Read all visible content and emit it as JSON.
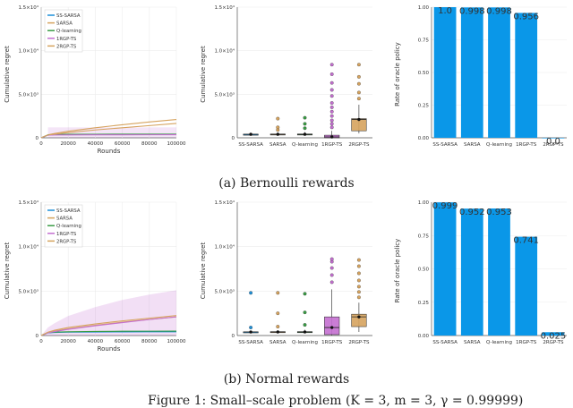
{
  "figure": {
    "caption_a": "(a) Bernoulli rewards",
    "caption_b": "(b) Normal rewards",
    "caption_main": "Figure 1: Small–scale problem (K = 3, m = 3, γ = 0.99999)"
  },
  "colors": {
    "ss_sarsa": "#1e90d8",
    "sarsa": "#d6a35e",
    "q_learning": "#3a9c45",
    "rgp1": "#c46fd0",
    "rgp2": "#d6a35e",
    "bar": "#0a97e8",
    "grid": "#ececec",
    "axis": "#555555"
  },
  "chart_data": [
    {
      "type": "line",
      "panel": "bernoulli-regret-curve",
      "title": "",
      "xlabel": "Rounds",
      "ylabel": "Cumulative regret",
      "xlim": [
        0,
        100000
      ],
      "ylim": [
        0,
        15000
      ],
      "xticks": [
        "0",
        "20000",
        "40000",
        "60000",
        "80000",
        "100000"
      ],
      "yticks": [
        "0",
        "5.0×10³",
        "1.0×10⁴",
        "1.5×10⁴"
      ],
      "legend": [
        "SS-SARSA",
        "SARSA",
        "Q-learning",
        "1RGP-TS",
        "2RGP-TS"
      ],
      "legend_position": "top-left",
      "x": [
        0,
        5000,
        10000,
        20000,
        40000,
        60000,
        80000,
        100000
      ],
      "series": [
        {
          "name": "SS-SARSA",
          "values": [
            0,
            300,
            350,
            380,
            390,
            395,
            398,
            400
          ]
        },
        {
          "name": "SARSA",
          "values": [
            0,
            350,
            500,
            750,
            1150,
            1500,
            1820,
            2100
          ]
        },
        {
          "name": "Q-learning",
          "values": [
            0,
            330,
            380,
            400,
            410,
            415,
            418,
            420
          ]
        },
        {
          "name": "1RGP-TS",
          "values": [
            0,
            300,
            320,
            330,
            340,
            345,
            348,
            350
          ],
          "band": [
            1200,
            1200
          ]
        },
        {
          "name": "2RGP-TS",
          "values": [
            0,
            320,
            420,
            600,
            900,
            1150,
            1400,
            1650
          ]
        }
      ]
    },
    {
      "type": "boxplot",
      "panel": "bernoulli-regret-box",
      "ylabel": "Cumulative regret",
      "ylim": [
        0,
        15000
      ],
      "yticks": [
        "0",
        "5.0×10³",
        "1.0×10⁴",
        "1.5×10⁴"
      ],
      "categories": [
        "SS-SARSA",
        "SARSA",
        "Q-learning",
        "1RGP-TS",
        "2RGP-TS"
      ],
      "boxes": [
        {
          "q1": 380,
          "median": 400,
          "q3": 420,
          "whisker_low": 360,
          "whisker_high": 440,
          "outliers": [],
          "point": 400
        },
        {
          "q1": 360,
          "median": 400,
          "q3": 440,
          "whisker_low": 330,
          "whisker_high": 600,
          "outliers": [
            900,
            1200,
            2200
          ],
          "point": 400
        },
        {
          "q1": 360,
          "median": 400,
          "q3": 440,
          "whisker_low": 330,
          "whisker_high": 650,
          "outliers": [
            1100,
            1600,
            2300
          ],
          "point": 400
        },
        {
          "q1": 0,
          "median": 100,
          "q3": 300,
          "whisker_low": 0,
          "whisker_high": 800,
          "outliers": [
            1200,
            1600,
            2000,
            2500,
            3000,
            3500,
            4000,
            4800,
            5500,
            6300,
            7300,
            8400
          ],
          "point": 100
        },
        {
          "q1": 800,
          "median": 2100,
          "q3": 2200,
          "whisker_low": 500,
          "whisker_high": 3800,
          "outliers": [
            4500,
            5200,
            6200,
            7000,
            8400
          ],
          "point": 2100
        }
      ]
    },
    {
      "type": "bar",
      "panel": "bernoulli-oracle-rate",
      "ylabel": "Rate of oracle policy",
      "ylim": [
        0,
        1
      ],
      "yticks": [
        "0.00",
        "0.25",
        "0.50",
        "0.75",
        "1.00"
      ],
      "categories": [
        "SS-SARSA",
        "SARSA",
        "Q-learning",
        "1RGP-TS",
        "2RGP-TS"
      ],
      "values": [
        1.0,
        0.998,
        0.998,
        0.956,
        0.0
      ],
      "data_labels": [
        "1.0",
        "0.998",
        "0.998",
        "0.956",
        "0.0"
      ]
    },
    {
      "type": "line",
      "panel": "normal-regret-curve",
      "xlabel": "Rounds",
      "ylabel": "Cumulative regret",
      "xlim": [
        0,
        100000
      ],
      "ylim": [
        0,
        15000
      ],
      "xticks": [
        "0",
        "20000",
        "40000",
        "60000",
        "80000",
        "100000"
      ],
      "yticks": [
        "0",
        "5.0×10³",
        "1.0×10⁴",
        "1.5×10⁴"
      ],
      "legend": [
        "SS-SARSA",
        "SARSA",
        "Q-learning",
        "1RGP-TS",
        "2RGP-TS"
      ],
      "legend_position": "top-left",
      "x": [
        0,
        5000,
        10000,
        20000,
        40000,
        60000,
        80000,
        100000
      ],
      "series": [
        {
          "name": "SS-SARSA",
          "values": [
            0,
            300,
            350,
            380,
            400,
            410,
            415,
            420
          ]
        },
        {
          "name": "SARSA",
          "values": [
            0,
            350,
            500,
            750,
            1150,
            1500,
            1820,
            2100
          ]
        },
        {
          "name": "Q-learning",
          "values": [
            0,
            320,
            380,
            420,
            460,
            480,
            490,
            500
          ]
        },
        {
          "name": "1RGP-TS",
          "values": [
            0,
            300,
            450,
            700,
            1100,
            1450,
            1800,
            2100
          ],
          "band_upper": [
            0,
            900,
            1400,
            2200,
            3200,
            4000,
            4600,
            5100
          ]
        },
        {
          "name": "2RGP-TS",
          "values": [
            0,
            380,
            600,
            900,
            1300,
            1650,
            1950,
            2250
          ]
        }
      ]
    },
    {
      "type": "boxplot",
      "panel": "normal-regret-box",
      "ylabel": "Cumulative regret",
      "ylim": [
        0,
        15000
      ],
      "yticks": [
        "0",
        "5.0×10³",
        "1.0×10⁴",
        "1.5×10⁴"
      ],
      "categories": [
        "SS-SARSA",
        "SARSA",
        "Q-learning",
        "1RGP-TS",
        "2RGP-TS"
      ],
      "boxes": [
        {
          "q1": 380,
          "median": 400,
          "q3": 420,
          "whisker_low": 360,
          "whisker_high": 460,
          "outliers": [
            900,
            4800
          ],
          "point": 400
        },
        {
          "q1": 360,
          "median": 400,
          "q3": 440,
          "whisker_low": 330,
          "whisker_high": 600,
          "outliers": [
            1000,
            2500,
            4800
          ],
          "point": 400
        },
        {
          "q1": 360,
          "median": 400,
          "q3": 440,
          "whisker_low": 330,
          "whisker_high": 650,
          "outliers": [
            1200,
            2600,
            4700
          ],
          "point": 400
        },
        {
          "q1": 100,
          "median": 900,
          "q3": 2100,
          "whisker_low": 0,
          "whisker_high": 5200,
          "outliers": [
            6000,
            6800,
            7600,
            8300,
            8600
          ],
          "point": 900
        },
        {
          "q1": 1000,
          "median": 2100,
          "q3": 2400,
          "whisker_low": 400,
          "whisker_high": 3700,
          "outliers": [
            4300,
            4900,
            5500,
            6200,
            7000,
            7800,
            8500
          ],
          "point": 2100
        }
      ]
    },
    {
      "type": "bar",
      "panel": "normal-oracle-rate",
      "ylabel": "Rate of oracle policy",
      "ylim": [
        0,
        1
      ],
      "yticks": [
        "0.00",
        "0.25",
        "0.50",
        "0.75",
        "1.00"
      ],
      "categories": [
        "SS-SARSA",
        "SARSA",
        "Q-learning",
        "1RGP-TS",
        "2RGP-TS"
      ],
      "values": [
        0.999,
        0.952,
        0.953,
        0.741,
        0.025
      ],
      "data_labels": [
        "0.999",
        "0.952",
        "0.953",
        "0.741",
        "0.025"
      ]
    }
  ]
}
